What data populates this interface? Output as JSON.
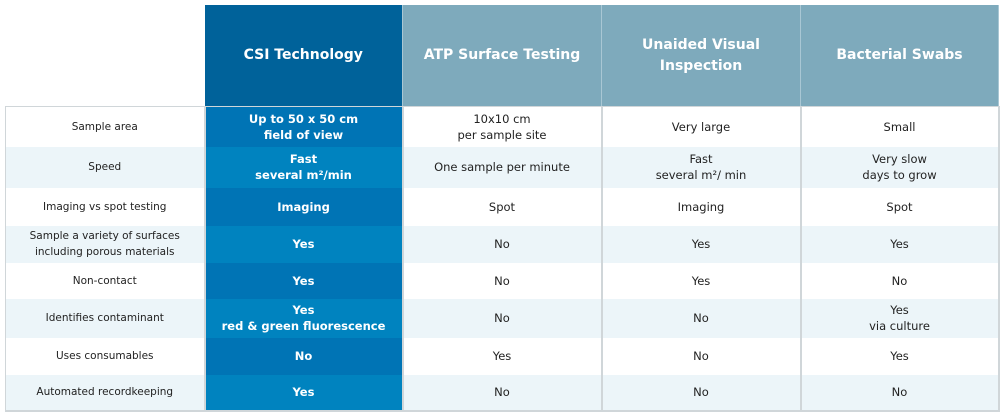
{
  "columns": [
    "CSI Technology",
    "ATP Surface Testing",
    "Unaided Visual Inspection",
    "Bacterial Swabs"
  ],
  "rows": [
    {
      "label": "Sample area",
      "cells": [
        [
          "Up to 50 x 50 cm",
          "field of view"
        ],
        [
          "10x10 cm",
          "per sample site"
        ],
        [
          "Very large"
        ],
        [
          "Small"
        ]
      ]
    },
    {
      "label": "Speed",
      "cells": [
        [
          "Fast",
          "several m²/min"
        ],
        [
          "One sample per minute"
        ],
        [
          "Fast",
          "several m²/ min"
        ],
        [
          "Very slow",
          "days to grow"
        ]
      ]
    },
    {
      "label": "Imaging vs spot testing",
      "cells": [
        [
          "Imaging"
        ],
        [
          "Spot"
        ],
        [
          "Imaging"
        ],
        [
          "Spot"
        ]
      ]
    },
    {
      "label": "Sample a variety of surfaces including porous materials",
      "cells": [
        [
          "Yes"
        ],
        [
          "No"
        ],
        [
          "Yes"
        ],
        [
          "Yes"
        ]
      ]
    },
    {
      "label": "Non-contact",
      "cells": [
        [
          "Yes"
        ],
        [
          "No"
        ],
        [
          "Yes"
        ],
        [
          "No"
        ]
      ]
    },
    {
      "label": "Identifies contaminant",
      "cells": [
        [
          "Yes",
          "red & green fluorescence"
        ],
        [
          "No"
        ],
        [
          "No"
        ],
        [
          "Yes",
          "via culture"
        ]
      ]
    },
    {
      "label": "Uses consumables",
      "cells": [
        [
          "No"
        ],
        [
          "Yes"
        ],
        [
          "No"
        ],
        [
          "Yes"
        ]
      ]
    },
    {
      "label": "Automated recordkeeping",
      "cells": [
        [
          "Yes"
        ],
        [
          "No"
        ],
        [
          "No"
        ],
        [
          "No"
        ]
      ]
    }
  ],
  "colors": {
    "csi_header": "#00629a",
    "csi_cell_a": "#0074b5",
    "csi_cell_b": "#0083bf",
    "other_header": "#7eaabc",
    "stripe": "#ecf5f9"
  }
}
